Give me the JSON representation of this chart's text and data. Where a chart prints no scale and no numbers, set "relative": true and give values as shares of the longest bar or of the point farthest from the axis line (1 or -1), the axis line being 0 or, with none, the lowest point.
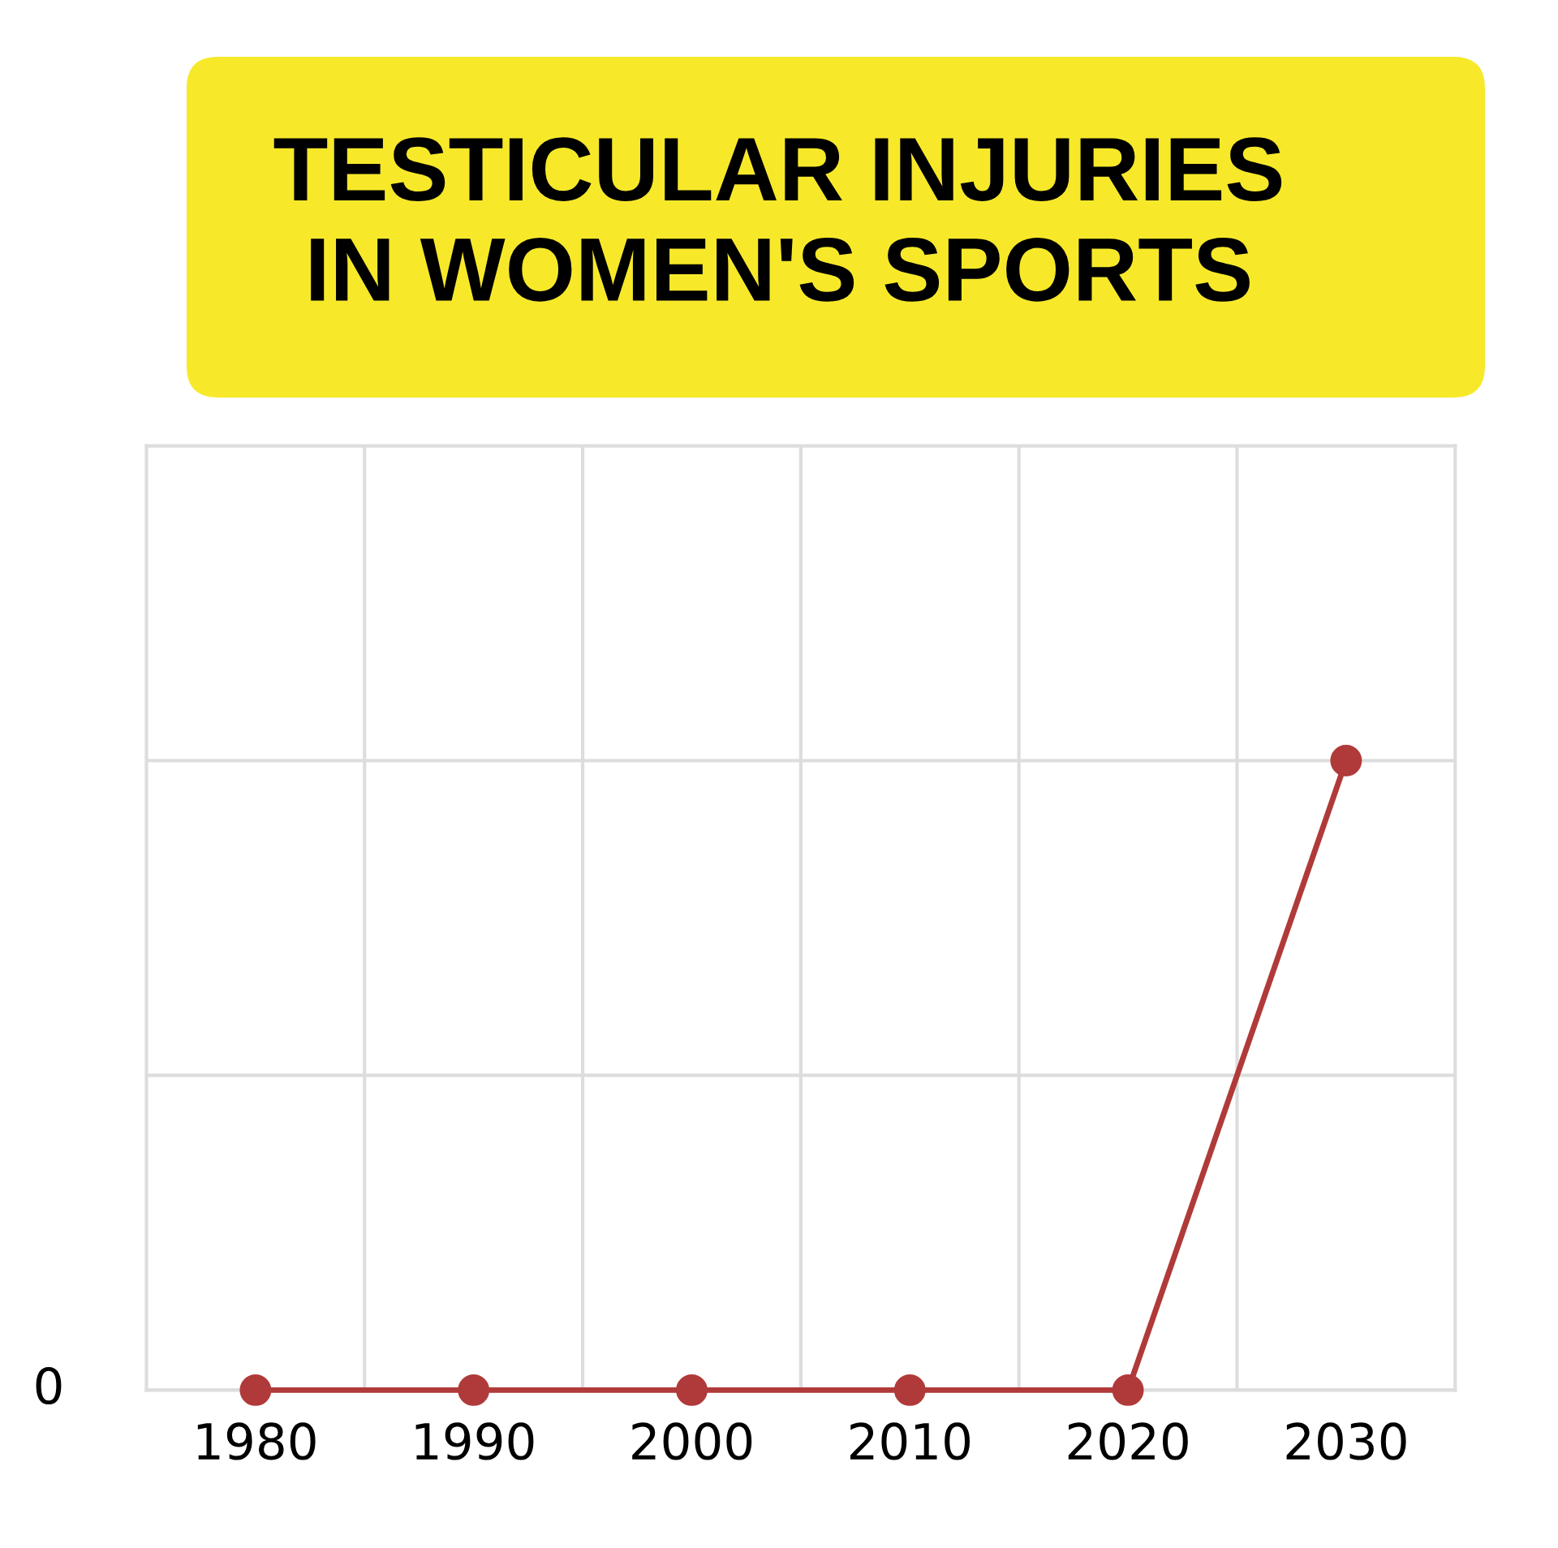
{
  "chart_data": {
    "type": "line",
    "title": "TESTICULAR INJURIES\nIN WOMEN'S SPORTS",
    "categories": [
      "1980",
      "1990",
      "2000",
      "2010",
      "2020",
      "2030"
    ],
    "series": [
      {
        "color": "#b03a3a",
        "values": [
          0,
          0,
          0,
          0,
          0,
          1
        ]
      }
    ],
    "relative": true,
    "marker": "circle",
    "line_style": "solid",
    "grid": true,
    "annotations": [
      "0"
    ]
  }
}
